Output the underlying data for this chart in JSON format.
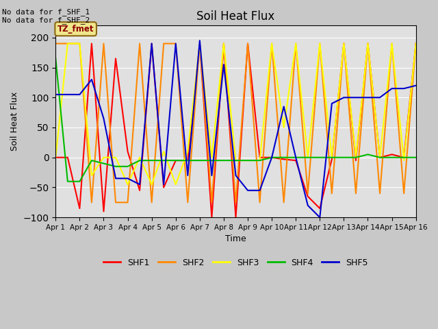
{
  "title": "Soil Heat Flux",
  "xlabel": "Time",
  "ylabel": "Soil Heat Flux",
  "ylim": [
    -100,
    220
  ],
  "yticks": [
    -100,
    -50,
    0,
    50,
    100,
    150,
    200
  ],
  "annotations": [
    "No data for f_SHF_1",
    "No data for f_SHF_2"
  ],
  "box_label": "TZ_fmet",
  "x_labels": [
    "Apr 1",
    "Apr 2",
    "Apr 3",
    "Apr 4",
    "Apr 5",
    "Apr 6",
    "Apr 7",
    "Apr 8",
    "Apr 9",
    "Apr 10",
    "Apr 11",
    "Apr 12",
    "Apr 13",
    "Apr 14",
    "Apr 15",
    "Apr 16"
  ],
  "series": {
    "SHF1": {
      "color": "#ff0000",
      "x": [
        1,
        1.5,
        2,
        2.5,
        3,
        3.5,
        4,
        4.5,
        5,
        5.5,
        6,
        6.5,
        7,
        7.5,
        8,
        8.5,
        9,
        9.5,
        10,
        10.5,
        11,
        11.5,
        12,
        12.5,
        13,
        13.5,
        14,
        14.5,
        15,
        15.5,
        16
      ],
      "y": [
        0,
        0,
        -85,
        190,
        -90,
        165,
        10,
        -55,
        190,
        -50,
        -5,
        -5,
        190,
        -100,
        190,
        -100,
        190,
        0,
        0,
        -3,
        -5,
        -65,
        -85,
        -3,
        190,
        -5,
        190,
        0,
        5,
        0,
        190
      ]
    },
    "SHF2": {
      "color": "#ff8800",
      "x": [
        1,
        1.5,
        2,
        2.5,
        3,
        3.5,
        4,
        4.5,
        5,
        5.5,
        6,
        6.5,
        7,
        7.5,
        8,
        8.5,
        9,
        9.5,
        10,
        10.5,
        11,
        11.5,
        12,
        12.5,
        13,
        13.5,
        14,
        14.5,
        15,
        15.5,
        16
      ],
      "y": [
        190,
        190,
        190,
        -75,
        190,
        -75,
        -75,
        190,
        -75,
        190,
        190,
        -75,
        190,
        -75,
        190,
        -75,
        190,
        -75,
        190,
        -75,
        190,
        -60,
        190,
        -60,
        190,
        -60,
        190,
        -60,
        190,
        -60,
        190
      ]
    },
    "SHF3": {
      "color": "#ffff00",
      "x": [
        1,
        1.5,
        2,
        2.5,
        3,
        3.5,
        4,
        4.5,
        5,
        5.5,
        6,
        6.5,
        7,
        7.5,
        8,
        8.5,
        9,
        9.5,
        10,
        10.5,
        11,
        11.5,
        12,
        12.5,
        13,
        13.5,
        14,
        14.5,
        15,
        15.5,
        16
      ],
      "y": [
        0,
        190,
        190,
        -30,
        0,
        0,
        -45,
        0,
        -45,
        10,
        -45,
        10,
        190,
        0,
        190,
        -5,
        -5,
        -5,
        190,
        50,
        190,
        0,
        190,
        0,
        190,
        0,
        190,
        0,
        190,
        -5,
        190
      ]
    },
    "SHF4": {
      "color": "#00bb00",
      "x": [
        1,
        1.5,
        2,
        2.5,
        3,
        3.5,
        4,
        4.5,
        5,
        5.5,
        6,
        6.5,
        7,
        7.5,
        8,
        8.5,
        9,
        9.5,
        10,
        10.5,
        11,
        11.5,
        12,
        12.5,
        13,
        13.5,
        14,
        14.5,
        15,
        15.5,
        16
      ],
      "y": [
        165,
        -40,
        -40,
        -5,
        -10,
        -15,
        -15,
        -5,
        -5,
        -5,
        -5,
        -5,
        -5,
        -5,
        -5,
        -5,
        -5,
        -5,
        0,
        0,
        0,
        0,
        0,
        0,
        0,
        0,
        5,
        0,
        0,
        0,
        0
      ]
    },
    "SHF5": {
      "color": "#0000cc",
      "x": [
        1,
        1.5,
        2,
        2.5,
        3,
        3.5,
        4,
        4.5,
        5,
        5.5,
        6,
        6.5,
        7,
        7.5,
        8,
        8.5,
        9,
        9.5,
        10,
        10.5,
        11,
        11.5,
        12,
        12.5,
        13,
        13.5,
        14,
        14.5,
        15,
        15.5,
        16
      ],
      "y": [
        105,
        105,
        105,
        130,
        65,
        -35,
        -35,
        -45,
        190,
        -45,
        190,
        -30,
        195,
        -30,
        155,
        -30,
        -55,
        -55,
        0,
        85,
        0,
        -80,
        -100,
        90,
        100,
        100,
        100,
        100,
        115,
        115,
        120
      ]
    }
  },
  "legend_entries": [
    "SHF1",
    "SHF2",
    "SHF3",
    "SHF4",
    "SHF5"
  ],
  "legend_colors": [
    "#ff0000",
    "#ff8800",
    "#ffff00",
    "#00bb00",
    "#0000cc"
  ],
  "fig_bg_color": "#c8c8c8",
  "plot_bg_color": "#e0e0e0",
  "grid_color": "#ffffff"
}
